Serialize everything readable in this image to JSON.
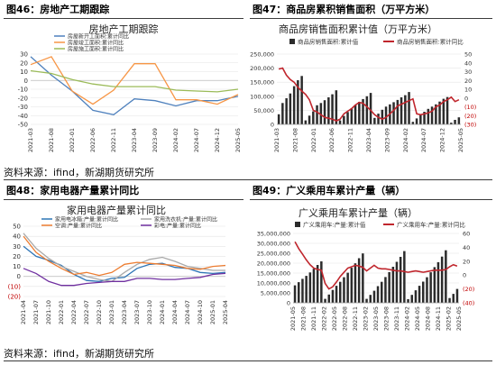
{
  "figures": [
    {
      "title": "图46：房地产工期跟踪"
    },
    {
      "title": "图47：商品房累积销售面积（万平方米）"
    },
    {
      "title": "图48：家用电器产量累计同比"
    },
    {
      "title": "图49：广义乘用车累计产量（辆）"
    }
  ],
  "sources": [
    "资料来源：ifind，新湖期货研究所",
    "资料来源：ifind，新湖期货研究所"
  ],
  "chart_data": [
    {
      "type": "line",
      "title": "房地产工期跟踪",
      "x": [
        "2021-03",
        "2021-08",
        "2022-01",
        "2022-06",
        "2022-11",
        "2023-04",
        "2023-09",
        "2024-02",
        "2024-07",
        "2024-12",
        "2025-05"
      ],
      "ylim": [
        -50,
        30
      ],
      "yticks": [
        "30",
        "20",
        "10",
        "0",
        "-10",
        "-20",
        "-30",
        "-40",
        "-50"
      ],
      "series": [
        {
          "name": "房屋新开工面积:累计同比",
          "color": "#4f81bd",
          "values": [
            27,
            6,
            -12,
            -34,
            -39,
            -21,
            -23,
            -29,
            -23,
            -23,
            -18
          ]
        },
        {
          "name": "房屋竣工面积:累计同比",
          "color": "#f79646",
          "values": [
            18,
            27,
            -12,
            -27,
            -11,
            19,
            19,
            -22,
            -22,
            -27,
            -16
          ]
        },
        {
          "name": "房屋施工面积:累计同比",
          "color": "#9bbb59",
          "values": [
            11,
            8,
            1,
            -4,
            -7,
            -7,
            -7,
            -11,
            -12,
            -13,
            -10
          ]
        }
      ],
      "legend": "top-left"
    },
    {
      "type": "bar",
      "title": "商品房销售面积累计值（万平方米）",
      "x_tick_labels": [
        "2021-03",
        "2021-08",
        "2022-01",
        "2022-06",
        "2022-11",
        "2023-04",
        "2023-09",
        "2024-02",
        "2024-07",
        "2024-12",
        "2025-05"
      ],
      "ylim_left": [
        0,
        250000
      ],
      "yticks_left": [
        "250,000",
        "200,000",
        "150,000",
        "100,000",
        "50,000",
        "0"
      ],
      "ylim_right": [
        -30,
        50
      ],
      "yticks_right": [
        "50",
        "40",
        "30",
        "20",
        "10",
        "0",
        "(10)",
        "(20)",
        "(30)"
      ],
      "series": [
        {
          "name": "商品房销售面积:累计值",
          "color": "#2b2b2b",
          "axis": "left",
          "values": [
            36000,
            76000,
            93000,
            110000,
            136000,
            157000,
            172000,
            14000,
            31000,
            46000,
            68000,
            76000,
            86000,
            96000,
            107000,
            121000,
            14000,
            30000,
            44000,
            57000,
            69000,
            80000,
            90000,
            100000,
            112000,
            23000,
            38000,
            52000,
            63000,
            71000,
            79000,
            87000,
            96000,
            104000,
            115000,
            9000,
            21000,
            34000,
            45000,
            55000,
            63000,
            71000,
            81000,
            91000,
            97000,
            6000,
            16000,
            25000
          ]
        },
        {
          "name": "商品房销售面积:累计同比",
          "color": "#c0262d",
          "axis": "right",
          "values": [
            33,
            34,
            26,
            21,
            18,
            12,
            8,
            4,
            -2,
            -14,
            -16,
            -19,
            -22,
            -23,
            -24,
            -26,
            -24,
            -18,
            -15,
            -12,
            -8,
            -5,
            -6,
            -10,
            -14,
            -19,
            -22,
            -24,
            -22,
            -18,
            -14,
            -9,
            -7,
            -5,
            -3,
            -1,
            -18,
            -19,
            -18,
            -17,
            -15,
            -10,
            -8,
            -4,
            -2,
            1,
            -4,
            -2
          ]
        }
      ],
      "legend": "top"
    },
    {
      "type": "line",
      "title": "家用电器产量累计同比",
      "x": [
        "2021-04",
        "2021-07",
        "2021-10",
        "2022-01",
        "2022-04",
        "2022-07",
        "2022-10",
        "2023-01",
        "2023-04",
        "2023-07",
        "2023-10",
        "2024-01",
        "2024-04",
        "2024-07",
        "2024-10",
        "2025-01",
        "2025-04"
      ],
      "ylim": [
        -20,
        50
      ],
      "yticks": [
        "50",
        "40",
        "30",
        "20",
        "10",
        "0",
        "(10)",
        "(20)"
      ],
      "series": [
        {
          "name": "家用电冰箱:产量:累计同比",
          "color": "#2e75b6",
          "values": [
            30,
            20,
            16,
            11,
            2,
            -4,
            -5,
            -2,
            -1,
            8,
            12,
            13,
            9,
            8,
            4,
            3,
            4
          ]
        },
        {
          "name": "家用洗衣机:产量:累计同比",
          "color": "#a9a9a9",
          "values": [
            43,
            28,
            18,
            10,
            5,
            0,
            -3,
            -5,
            4,
            12,
            17,
            19,
            15,
            10,
            8,
            6,
            6
          ]
        },
        {
          "name": "空调:产量:累计同比",
          "color": "#ed7d31",
          "values": [
            40,
            24,
            15,
            8,
            2,
            4,
            1,
            4,
            12,
            14,
            13,
            12,
            11,
            8,
            7,
            10,
            11
          ]
        },
        {
          "name": "彩电:产量:累计同比",
          "color": "#7030a0",
          "values": [
            8,
            3,
            -5,
            -9,
            -9,
            -7,
            -6,
            -5,
            -5,
            -2,
            -2,
            -3,
            -3,
            -2,
            -1,
            2,
            3
          ]
        }
      ],
      "legend": "top"
    },
    {
      "type": "bar",
      "title": "广义乘用车累计产量（辆）",
      "x_tick_labels": [
        "2021-05",
        "2021-08",
        "2021-11",
        "2022-02",
        "2022-05",
        "2022-08",
        "2022-11",
        "2023-02",
        "2023-05",
        "2023-08",
        "2023-11",
        "2024-02",
        "2024-05",
        "2024-08",
        "2024-11",
        "2025-02",
        "2025-05"
      ],
      "ylim_left": [
        0,
        35000000
      ],
      "yticks_left": [
        "35,000,000",
        "30,000,000",
        "25,000,000",
        "20,000,000",
        "15,000,000",
        "10,000,000",
        "5,000,000",
        "0"
      ],
      "ylim_right": [
        -40,
        60
      ],
      "yticks_right": [
        "60",
        "40",
        "20",
        "0",
        "(20)",
        "(40)"
      ],
      "series": [
        {
          "name": "广义乘用车:产量:累计值",
          "color": "#2b2b2b",
          "axis": "left",
          "values": [
            8800000,
            10400000,
            12100000,
            13600000,
            15300000,
            17200000,
            19100000,
            20900000,
            2000000,
            4200000,
            6500000,
            8600000,
            10600000,
            12900000,
            15200000,
            17700000,
            19900000,
            22500000,
            24900000,
            2000000,
            4000000,
            6100000,
            8400000,
            10600000,
            13000000,
            15500000,
            18200000,
            20700000,
            23200000,
            26100000,
            1800000,
            4000000,
            6300000,
            8600000,
            10700000,
            12900000,
            15400000,
            18000000,
            20500000,
            23300000,
            26500000,
            2400000,
            4500000,
            7000000
          ]
        },
        {
          "name": "广义乘用车:产量:累计同比",
          "color": "#c0262d",
          "axis": "right",
          "values": [
            48,
            38,
            30,
            22,
            15,
            10,
            8,
            7,
            -12,
            -20,
            -17,
            -10,
            -2,
            4,
            10,
            12,
            14,
            13,
            11,
            6,
            10,
            14,
            10,
            9,
            9,
            8,
            7,
            6,
            6,
            5,
            4,
            5,
            6,
            5,
            4,
            5,
            6,
            7,
            7,
            7,
            8,
            12,
            15,
            13
          ]
        }
      ],
      "legend": "top"
    }
  ]
}
